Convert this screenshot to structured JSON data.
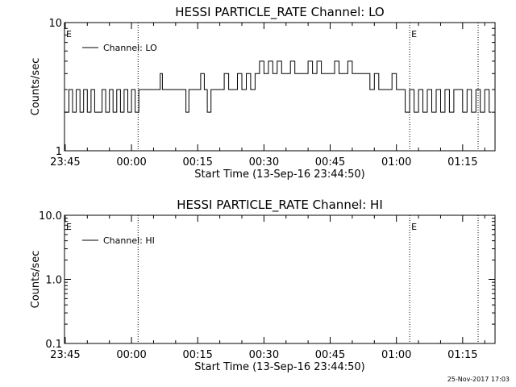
{
  "footer": {
    "date": "25-Nov-2017 17:03"
  },
  "chart_data": [
    {
      "type": "line",
      "title": "HESSI PARTICLE_RATE Channel: LO",
      "xlabel": "Start Time (13-Sep-16 23:44:50)",
      "ylabel": "Counts/sec",
      "yscale": "log",
      "ylim": [
        1,
        10
      ],
      "yticks": [
        "1",
        "10"
      ],
      "xlim": [
        "23:44:50",
        "01:22:20"
      ],
      "xticks": [
        "23:45",
        "00:00",
        "00:15",
        "00:30",
        "00:45",
        "01:00",
        "01:15"
      ],
      "markers": [
        {
          "time": "00:01:30",
          "label": ""
        },
        {
          "time": "01:03:00",
          "label": "E"
        },
        {
          "time": "01:18:30",
          "label": ""
        }
      ],
      "left_marker_label": "E",
      "legend": {
        "position": "top-left",
        "entries": [
          "Channel: LO"
        ]
      },
      "series": [
        {
          "name": "Channel: LO",
          "x": [
            "23:44:50",
            "23:45:50",
            "23:46:40",
            "23:47:30",
            "23:48:20",
            "23:49:10",
            "23:50:00",
            "23:50:50",
            "23:51:40",
            "23:52:30",
            "23:53:20",
            "23:54:10",
            "23:55:00",
            "23:55:50",
            "23:56:40",
            "23:57:30",
            "23:58:20",
            "23:59:10",
            "00:00:00",
            "00:00:50",
            "00:01:40",
            "00:02:30",
            "00:04:00",
            "00:05:30",
            "00:06:30",
            "00:07:00",
            "00:08:30",
            "00:10:00",
            "00:11:30",
            "00:12:20",
            "00:13:00",
            "00:14:00",
            "00:15:00",
            "00:15:40",
            "00:16:30",
            "00:17:10",
            "00:18:00",
            "00:19:00",
            "00:20:00",
            "00:21:00",
            "00:22:00",
            "00:23:00",
            "00:24:00",
            "00:25:00",
            "00:26:00",
            "00:27:00",
            "00:28:00",
            "00:29:00",
            "00:30:00",
            "00:31:00",
            "00:32:00",
            "00:33:00",
            "00:34:00",
            "00:35:00",
            "00:36:00",
            "00:37:00",
            "00:38:00",
            "00:39:00",
            "00:40:00",
            "00:41:00",
            "00:42:00",
            "00:43:00",
            "00:44:00",
            "00:45:00",
            "00:46:00",
            "00:47:00",
            "00:48:00",
            "00:49:00",
            "00:50:00",
            "00:51:00",
            "00:52:00",
            "00:53:00",
            "00:54:00",
            "00:55:00",
            "00:56:00",
            "00:57:00",
            "00:58:00",
            "00:59:00",
            "01:00:00",
            "01:01:00",
            "01:02:00",
            "01:03:00",
            "01:04:00",
            "01:05:00",
            "01:06:00",
            "01:07:00",
            "01:08:00",
            "01:09:00",
            "01:10:00",
            "01:11:00",
            "01:12:00",
            "01:13:00",
            "01:14:00",
            "01:15:00",
            "01:16:00",
            "01:17:00",
            "01:18:00",
            "01:19:00",
            "01:20:00",
            "01:21:00",
            "01:21:30"
          ],
          "y": [
            2,
            3,
            2,
            3,
            2,
            3,
            2,
            3,
            2,
            2,
            3,
            2,
            3,
            2,
            3,
            2,
            3,
            2,
            3,
            2,
            3,
            3,
            3,
            3,
            4,
            3,
            3,
            3,
            3,
            2,
            3,
            3,
            3,
            4,
            3,
            2,
            3,
            3,
            3,
            4,
            3,
            3,
            4,
            3,
            4,
            3,
            4,
            5,
            4,
            5,
            4,
            5,
            4,
            4,
            5,
            4,
            4,
            4,
            5,
            4,
            5,
            4,
            4,
            4,
            5,
            4,
            4,
            5,
            4,
            4,
            4,
            4,
            3,
            4,
            3,
            3,
            3,
            4,
            3,
            3,
            2,
            3,
            2,
            3,
            2,
            3,
            2,
            3,
            2,
            3,
            2,
            3,
            3,
            2,
            3,
            2,
            3,
            2,
            3,
            2,
            2
          ]
        }
      ]
    },
    {
      "type": "line",
      "title": "HESSI PARTICLE_RATE Channel: HI",
      "xlabel": "Start Time (13-Sep-16 23:44:50)",
      "ylabel": "Counts/sec",
      "yscale": "log",
      "ylim": [
        0.1,
        10
      ],
      "yticks": [
        "0.1",
        "1.0",
        "10.0"
      ],
      "xlim": [
        "23:44:50",
        "01:22:20"
      ],
      "xticks": [
        "23:45",
        "00:00",
        "00:15",
        "00:30",
        "00:45",
        "01:00",
        "01:15"
      ],
      "markers": [
        {
          "time": "00:01:30",
          "label": ""
        },
        {
          "time": "01:03:00",
          "label": "E"
        },
        {
          "time": "01:18:30",
          "label": ""
        }
      ],
      "left_marker_label": "E",
      "legend": {
        "position": "top-left",
        "entries": [
          "Channel: HI"
        ]
      },
      "series": [
        {
          "name": "Channel: HI",
          "x": [],
          "y": []
        }
      ]
    }
  ]
}
